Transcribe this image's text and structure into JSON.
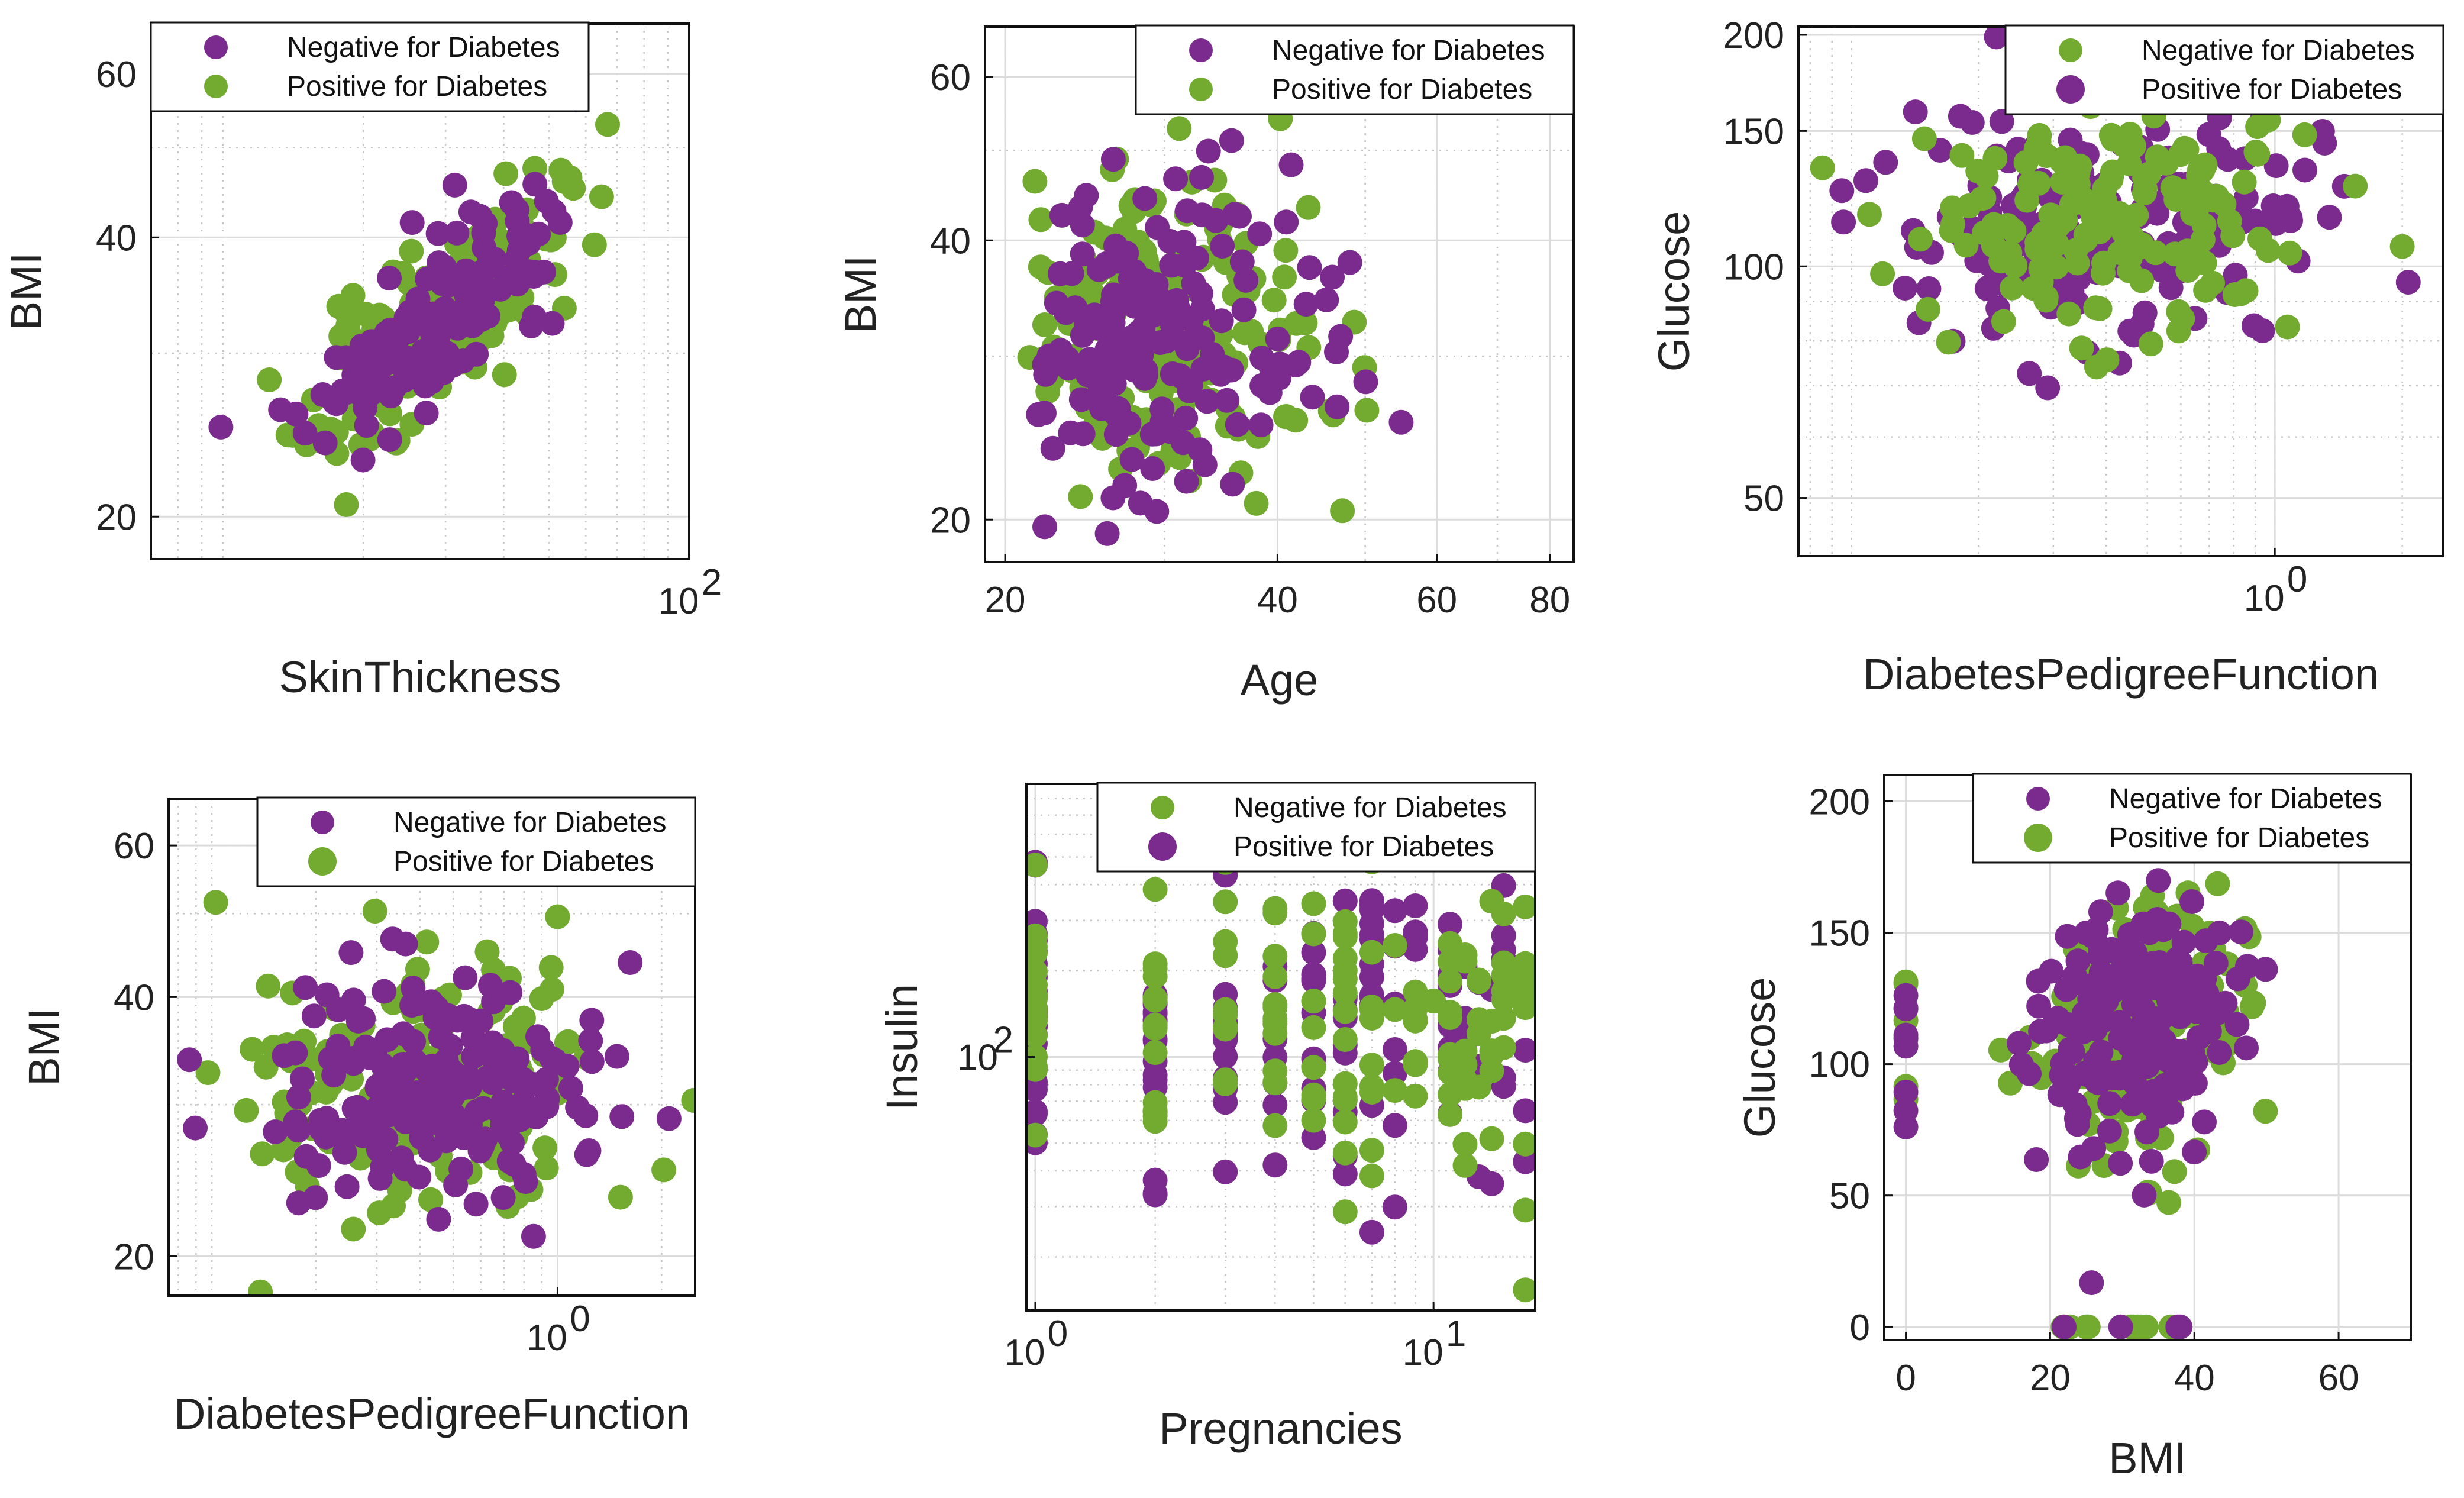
{
  "colors": {
    "negative": "#7b2a8e",
    "positive": "#72ab30",
    "grid_major": "#dcdcdc",
    "grid_minor": "#c8c8c8",
    "frame": "#111111"
  },
  "chart_data": [
    {
      "id": "p1",
      "type": "scatter",
      "xlabel": "SkinThickness",
      "ylabel": "BMI",
      "xscale": "log",
      "yscale": "log",
      "xlim": [
        7,
        100
      ],
      "ylim": [
        18,
        68
      ],
      "xticks": [
        {
          "v": 100,
          "base": "10",
          "exp": "2"
        }
      ],
      "yticks": [
        {
          "v": 20,
          "label": "20"
        },
        {
          "v": 40,
          "label": "40"
        },
        {
          "v": 60,
          "label": "60"
        }
      ],
      "legend": {
        "loc": "top-left",
        "entries": [
          "Negative for Diabetes",
          "Positive for Diabetes"
        ],
        "colors": [
          "negative",
          "positive"
        ],
        "big": [
          false,
          false
        ]
      },
      "gen": {
        "xdist": "log",
        "xc": 28,
        "xs": 0.3,
        "yc": 32,
        "ys": 0.15,
        "corr": 0.75,
        "n": 340,
        "seed": 11
      },
      "scatter_ratio": 0.55
    },
    {
      "id": "p2",
      "type": "scatter",
      "xlabel": "Age",
      "ylabel": "BMI",
      "xscale": "log",
      "yscale": "log",
      "xlim": [
        19,
        85
      ],
      "ylim": [
        18,
        68
      ],
      "xticks": [
        {
          "v": 20,
          "label": "20"
        },
        {
          "v": 40,
          "label": "40"
        },
        {
          "v": 60,
          "label": "60"
        },
        {
          "v": 80,
          "label": "80"
        }
      ],
      "yticks": [
        {
          "v": 20,
          "label": "20"
        },
        {
          "v": 40,
          "label": "40"
        },
        {
          "v": 60,
          "label": "60"
        }
      ],
      "legend": {
        "loc": "top-right",
        "entries": [
          "Negative for Diabetes",
          "Positive for Diabetes"
        ],
        "colors": [
          "negative",
          "positive"
        ],
        "big": [
          false,
          false
        ]
      },
      "gen": {
        "xdist": "age",
        "xc": 28,
        "xs": 0.3,
        "yc": 32,
        "ys": 0.18,
        "corr": 0.1,
        "n": 360,
        "seed": 23
      },
      "scatter_ratio": 0.5
    },
    {
      "id": "p3",
      "type": "scatter",
      "xlabel": "DiabetesPedigreeFunction",
      "ylabel": "Glucose",
      "xscale": "log",
      "yscale": "log",
      "xlim": [
        0.075,
        2.5
      ],
      "ylim": [
        42,
        205
      ],
      "xticks": [
        {
          "v": 1,
          "base": "10",
          "exp": "0"
        }
      ],
      "yticks": [
        {
          "v": 50,
          "label": "50"
        },
        {
          "v": 100,
          "label": "100"
        },
        {
          "v": 150,
          "label": "150"
        },
        {
          "v": 200,
          "label": "200"
        }
      ],
      "legend": {
        "loc": "top-right",
        "entries": [
          "Negative for Diabetes",
          "Positive for Diabetes"
        ],
        "colors": [
          "positive",
          "negative"
        ],
        "big": [
          false,
          true
        ]
      },
      "gen": {
        "xdist": "log",
        "xc": 0.42,
        "xs": 0.55,
        "yc": 115,
        "ys": 0.18,
        "corr": 0.05,
        "n": 360,
        "seed": 37
      },
      "scatter_ratio": 0.55,
      "swap_top": true
    },
    {
      "id": "p4",
      "type": "scatter",
      "xlabel": "DiabetesPedigreeFunction",
      "ylabel": "BMI",
      "xscale": "log",
      "yscale": "log",
      "xlim": [
        0.075,
        2.5
      ],
      "ylim": [
        18,
        68
      ],
      "xticks": [
        {
          "v": 1,
          "base": "10",
          "exp": "0"
        }
      ],
      "yticks": [
        {
          "v": 20,
          "label": "20"
        },
        {
          "v": 40,
          "label": "40"
        },
        {
          "v": 60,
          "label": "60"
        }
      ],
      "legend": {
        "loc": "top-right",
        "entries": [
          "Negative for Diabetes",
          "Positive for Diabetes"
        ],
        "colors": [
          "negative",
          "positive"
        ],
        "big": [
          false,
          true
        ]
      },
      "gen": {
        "xdist": "log",
        "xc": 0.42,
        "xs": 0.55,
        "yc": 32,
        "ys": 0.18,
        "corr": 0.05,
        "n": 360,
        "seed": 41
      },
      "scatter_ratio": 0.5
    },
    {
      "id": "p5",
      "type": "scatter",
      "xlabel": "Pregnancies",
      "ylabel": "Insulin",
      "xscale": "log",
      "yscale": "log",
      "xlim": [
        0.95,
        18
      ],
      "ylim": [
        13,
        900
      ],
      "xticks": [
        {
          "v": 1,
          "base": "10",
          "exp": "0"
        },
        {
          "v": 10,
          "base": "10",
          "exp": "1"
        }
      ],
      "yticks": [
        {
          "v": 100,
          "base": "10",
          "exp": "2"
        }
      ],
      "legend": {
        "loc": "top-right",
        "entries": [
          "Negative for Diabetes",
          "Positive for Diabetes"
        ],
        "colors": [
          "positive",
          "negative"
        ],
        "big": [
          false,
          true
        ]
      },
      "gen": {
        "xdist": "discrete",
        "xc": 3,
        "xs": 0.5,
        "yc": 120,
        "ys": 0.6,
        "corr": 0.0,
        "n": 300,
        "seed": 53
      },
      "scatter_ratio": 0.5
    },
    {
      "id": "p6",
      "type": "scatter",
      "xlabel": "BMI",
      "ylabel": "Glucose",
      "xscale": "linear",
      "yscale": "linear",
      "xlim": [
        -3,
        70
      ],
      "ylim": [
        -5,
        210
      ],
      "xticks": [
        {
          "v": 0,
          "label": "0"
        },
        {
          "v": 20,
          "label": "20"
        },
        {
          "v": 40,
          "label": "40"
        },
        {
          "v": 60,
          "label": "60"
        }
      ],
      "yticks": [
        {
          "v": 0,
          "label": "0"
        },
        {
          "v": 50,
          "label": "50"
        },
        {
          "v": 100,
          "label": "100"
        },
        {
          "v": 150,
          "label": "150"
        },
        {
          "v": 200,
          "label": "200"
        }
      ],
      "legend": {
        "loc": "top-right",
        "entries": [
          "Negative for Diabetes",
          "Positive for Diabetes"
        ],
        "colors": [
          "negative",
          "positive"
        ],
        "big": [
          false,
          true
        ]
      },
      "gen": {
        "xdist": "linear",
        "xc": 32,
        "xs": 6.5,
        "yc": 115,
        "ys": 26,
        "corr": 0.2,
        "n": 380,
        "seed": 67
      },
      "scatter_ratio": 0.5
    }
  ]
}
